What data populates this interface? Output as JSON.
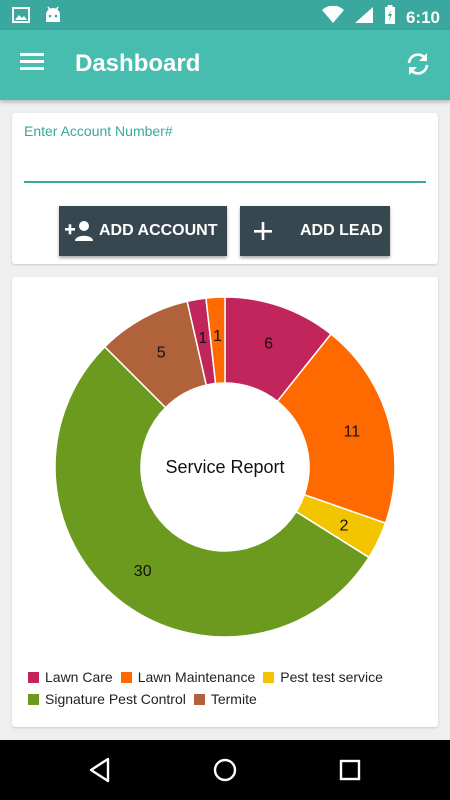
{
  "status_bar": {
    "time": "6:10"
  },
  "app_bar": {
    "title": "Dashboard"
  },
  "account": {
    "label": "Enter Account Number#",
    "value": "",
    "add_account_label": "ADD ACCOUNT",
    "add_lead_label": "ADD LEAD"
  },
  "chart_data": {
    "type": "pie",
    "title": "Service Report",
    "donut": true,
    "legend_position": "bottom",
    "start_slice_label": "6",
    "slices": [
      {
        "name": "Lawn Care",
        "value": 6,
        "color": "#c2255c"
      },
      {
        "name": "Lawn Maintenance",
        "value": 11,
        "color": "#ff6a00"
      },
      {
        "name": "Pest test service",
        "value": 2,
        "color": "#f2c500"
      },
      {
        "name": "Signature Pest Control",
        "value": 30,
        "color": "#6b9a1e"
      },
      {
        "name": "Termite",
        "value": 5,
        "color": "#b0633a"
      },
      {
        "name": "Lawn Care",
        "value": 1,
        "color": "#c2255c"
      },
      {
        "name": "Lawn Maintenance",
        "value": 1,
        "color": "#ff6a00"
      }
    ],
    "legend": [
      {
        "name": "Lawn Care",
        "color": "#c2255c"
      },
      {
        "name": "Lawn Maintenance",
        "color": "#ff6a00"
      },
      {
        "name": "Pest test service",
        "color": "#f2c500"
      },
      {
        "name": "Signature Pest Control",
        "color": "#6b9a1e"
      },
      {
        "name": "Termite",
        "color": "#b0633a"
      }
    ]
  }
}
